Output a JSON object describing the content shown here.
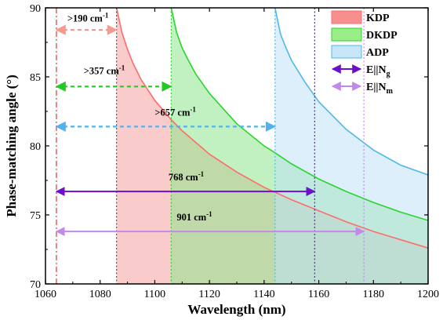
{
  "chart_data": {
    "type": "area",
    "xlabel": "Wavelength (nm)",
    "ylabel": "Phase-matching angle (°)",
    "xlim": [
      1060,
      1200
    ],
    "ylim": [
      70,
      90
    ],
    "xticks": [
      "1060",
      "1080",
      "1100",
      "1120",
      "1140",
      "1160",
      "1180",
      "1200"
    ],
    "yticks": [
      "70",
      "75",
      "80",
      "85",
      "90"
    ],
    "legend_position": "top-right",
    "series": [
      {
        "name": "KDP",
        "color": "#ff6b6b",
        "fill": "#f6a1a1",
        "x": [
          1086,
          1088,
          1090,
          1092,
          1095,
          1100,
          1106,
          1110,
          1120,
          1130,
          1140,
          1150,
          1160,
          1170,
          1180,
          1190,
          1200
        ],
        "y": [
          90,
          88.2,
          87.0,
          86.0,
          84.8,
          83.3,
          81.9,
          81.1,
          79.4,
          78.1,
          77.0,
          76.1,
          75.3,
          74.5,
          73.8,
          73.2,
          72.6
        ]
      },
      {
        "name": "DKDP",
        "color": "#2bd42b",
        "fill": "#8ee68e",
        "x": [
          1106,
          1108,
          1110,
          1112,
          1115,
          1120,
          1130,
          1140,
          1144,
          1150,
          1160,
          1170,
          1180,
          1190,
          1200
        ],
        "y": [
          90,
          88.2,
          87.1,
          86.3,
          85.2,
          83.8,
          81.6,
          80.0,
          79.5,
          78.7,
          77.6,
          76.7,
          75.9,
          75.2,
          74.6
        ]
      },
      {
        "name": "ADP",
        "color": "#4fb8e8",
        "fill": "#bfe2f5",
        "x": [
          1144,
          1146,
          1148,
          1150,
          1155,
          1160,
          1170,
          1180,
          1190,
          1200
        ],
        "y": [
          90,
          88.1,
          87.1,
          86.2,
          84.6,
          83.2,
          81.2,
          79.7,
          78.6,
          77.9
        ]
      }
    ],
    "vlines": [
      {
        "x": 1064,
        "color": "#e63333",
        "style": "dashdot"
      },
      {
        "x": 1086,
        "color": "#555555",
        "style": "dotted"
      },
      {
        "x": 1106,
        "color": "#2bd42b",
        "style": "dotted"
      },
      {
        "x": 1144,
        "color": "#4fb8e8",
        "style": "dotted"
      },
      {
        "x": 1158.5,
        "color": "#6a12c8",
        "style": "dotted"
      },
      {
        "x": 1176.5,
        "color": "#c28ae8",
        "style": "dotted"
      }
    ],
    "arrows": [
      {
        "x1": 1064,
        "x2": 1086,
        "y": 88.4,
        "color": "#f59a8f",
        "style": "dashed",
        "label": ">190 cm",
        "sup": "-1",
        "label_x": 1068,
        "label_y": 89.0
      },
      {
        "x1": 1064,
        "x2": 1106,
        "y": 84.3,
        "color": "#22c922",
        "style": "dashed",
        "label": ">357 cm",
        "sup": "-1",
        "label_x": 1074,
        "label_y": 85.2
      },
      {
        "x1": 1064,
        "x2": 1144,
        "y": 81.4,
        "color": "#4fb3f2",
        "style": "dashed",
        "label": ">657 cm",
        "sup": "-1",
        "label_x": 1100,
        "label_y": 82.2
      },
      {
        "x1": 1064,
        "x2": 1158.5,
        "y": 76.7,
        "color": "#6a12c8",
        "style": "solid",
        "label": "768 cm",
        "sup": "-1",
        "label_x": 1105,
        "label_y": 77.5
      },
      {
        "x1": 1064,
        "x2": 1176.5,
        "y": 73.8,
        "color": "#c28ae8",
        "style": "solid",
        "label": "901 cm",
        "sup": "-1",
        "label_x": 1108,
        "label_y": 74.6
      }
    ],
    "legend": [
      {
        "label": "KDP",
        "kind": "fill",
        "color": "#f88f8f",
        "stroke": "#ff6b6b"
      },
      {
        "label": "DKDP",
        "kind": "fill",
        "color": "#99ee88",
        "stroke": "#2bd42b"
      },
      {
        "label": "ADP",
        "kind": "fill",
        "color": "#c6e6f8",
        "stroke": "#4fb8e8"
      },
      {
        "label": "E||N",
        "sub": "g",
        "kind": "line",
        "color": "#6a12c8"
      },
      {
        "label": "E||N",
        "sub": "m",
        "kind": "line",
        "color": "#c28ae8"
      }
    ]
  }
}
